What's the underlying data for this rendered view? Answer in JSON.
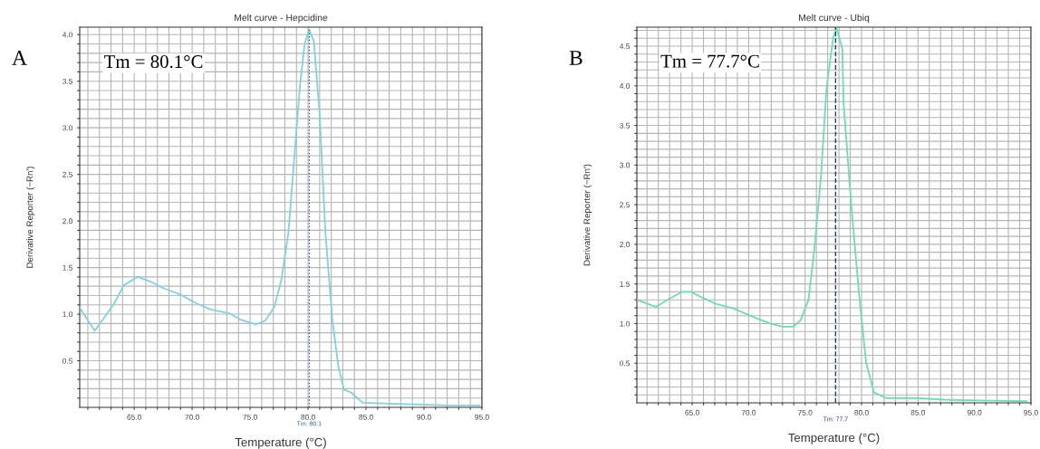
{
  "chart_data": [
    {
      "type": "line",
      "title": "Melt curve - Hepcidine",
      "xlabel": "Temperature (°C)",
      "ylabel": "Derivative Reporter (−Rn′)",
      "annotations": [
        "A",
        "Tm = 80.1°C"
      ],
      "x": [
        60.3,
        61.6,
        63.3,
        64.1,
        65.3,
        66.4,
        67.5,
        69.0,
        70.3,
        71.6,
        73.2,
        74.2,
        75.5,
        76.3,
        77.1,
        77.7,
        78.3,
        78.8,
        79.3,
        79.7,
        80.1,
        80.5,
        81.0,
        81.5,
        82.1,
        82.6,
        83.1,
        83.7,
        84.7,
        87.0,
        89.6,
        92.2,
        94.8
      ],
      "series": [
        {
          "color": "#7fd3dc",
          "values": [
            1.07,
            0.82,
            1.12,
            1.31,
            1.4,
            1.35,
            1.28,
            1.21,
            1.12,
            1.05,
            1.01,
            0.94,
            0.89,
            0.93,
            1.08,
            1.37,
            1.87,
            2.66,
            3.45,
            3.9,
            4.05,
            3.93,
            3.14,
            1.87,
            0.93,
            0.45,
            0.19,
            0.16,
            0.05,
            0.04,
            0.03,
            0.02,
            0.02
          ]
        }
      ],
      "xlim": [
        60.3,
        95
      ],
      "ylim": [
        0,
        4.08
      ],
      "xticks": [
        {
          "value": 61,
          "label": null
        },
        {
          "value": 62,
          "label": null
        },
        {
          "value": 63,
          "label": null
        },
        {
          "value": 64,
          "label": null
        },
        {
          "value": 65,
          "label": "65.0"
        },
        {
          "value": 66,
          "label": null
        },
        {
          "value": 67,
          "label": null
        },
        {
          "value": 68,
          "label": null
        },
        {
          "value": 69,
          "label": null
        },
        {
          "value": 70,
          "label": "70.0"
        },
        {
          "value": 71,
          "label": null
        },
        {
          "value": 72,
          "label": null
        },
        {
          "value": 73,
          "label": null
        },
        {
          "value": 74,
          "label": null
        },
        {
          "value": 75,
          "label": "75.0"
        },
        {
          "value": 76,
          "label": null
        },
        {
          "value": 77,
          "label": null
        },
        {
          "value": 78,
          "label": null
        },
        {
          "value": 79,
          "label": null
        },
        {
          "value": 80,
          "label": "80.0"
        },
        {
          "value": 81,
          "label": null
        },
        {
          "value": 82,
          "label": null
        },
        {
          "value": 83,
          "label": null
        },
        {
          "value": 84,
          "label": null
        },
        {
          "value": 85,
          "label": "85.0"
        },
        {
          "value": 86,
          "label": null
        },
        {
          "value": 87,
          "label": null
        },
        {
          "value": 88,
          "label": null
        },
        {
          "value": 89,
          "label": null
        },
        {
          "value": 90,
          "label": "90.0"
        },
        {
          "value": 91,
          "label": null
        },
        {
          "value": 92,
          "label": null
        },
        {
          "value": 93,
          "label": null
        },
        {
          "value": 94,
          "label": null
        },
        {
          "value": 95,
          "label": "95.0"
        }
      ],
      "yticks": [
        {
          "value": 0.1,
          "label": null
        },
        {
          "value": 0.2,
          "label": null
        },
        {
          "value": 0.3,
          "label": null
        },
        {
          "value": 0.4,
          "label": null
        },
        {
          "value": 0.5,
          "label": "0.5"
        },
        {
          "value": 0.6,
          "label": null
        },
        {
          "value": 0.7,
          "label": null
        },
        {
          "value": 0.8,
          "label": null
        },
        {
          "value": 0.9,
          "label": null
        },
        {
          "value": 1.0,
          "label": "1.0"
        },
        {
          "value": 1.1,
          "label": null
        },
        {
          "value": 1.2,
          "label": null
        },
        {
          "value": 1.3,
          "label": null
        },
        {
          "value": 1.4,
          "label": null
        },
        {
          "value": 1.5,
          "label": "1.5"
        },
        {
          "value": 1.6,
          "label": null
        },
        {
          "value": 1.7,
          "label": null
        },
        {
          "value": 1.8,
          "label": null
        },
        {
          "value": 1.9,
          "label": null
        },
        {
          "value": 2.0,
          "label": "2.0"
        },
        {
          "value": 2.1,
          "label": null
        },
        {
          "value": 2.2,
          "label": null
        },
        {
          "value": 2.3,
          "label": null
        },
        {
          "value": 2.4,
          "label": null
        },
        {
          "value": 2.5,
          "label": "2.5"
        },
        {
          "value": 2.6,
          "label": null
        },
        {
          "value": 2.7,
          "label": null
        },
        {
          "value": 2.8,
          "label": null
        },
        {
          "value": 2.9,
          "label": null
        },
        {
          "value": 3.0,
          "label": "3.0"
        },
        {
          "value": 3.1,
          "label": null
        },
        {
          "value": 3.2,
          "label": null
        },
        {
          "value": 3.3,
          "label": null
        },
        {
          "value": 3.4,
          "label": null
        },
        {
          "value": 3.5,
          "label": "3.5"
        },
        {
          "value": 3.6,
          "label": null
        },
        {
          "value": 3.7,
          "label": null
        },
        {
          "value": 3.8,
          "label": null
        },
        {
          "value": 3.9,
          "label": null
        },
        {
          "value": 4.0,
          "label": "4.0"
        }
      ],
      "ref_lines": [
        {
          "axis": "x",
          "value": 80.1,
          "label": "Tm: 80.1",
          "color": "#2a5fa8",
          "line_style": "dotted"
        }
      ],
      "grid": true
    },
    {
      "type": "line",
      "title": "Melt curve - Ubiq",
      "xlabel": "Temperature (°C)",
      "ylabel": "Derivative Reporter (−Rn′)",
      "annotations": [
        "B",
        "Tm = 77.7°C"
      ],
      "x": [
        60.1,
        61.8,
        62.8,
        64.1,
        64.9,
        66.0,
        67.1,
        68.7,
        70.3,
        71.9,
        73.0,
        73.9,
        74.6,
        75.3,
        75.8,
        76.4,
        76.9,
        77.5,
        77.8,
        78.3,
        78.4,
        79.1,
        79.8,
        80.4,
        81.1,
        82.2,
        84.9,
        87.3,
        90.3,
        94.6
      ],
      "series": [
        {
          "color": "#6fdcb4",
          "values": [
            1.3,
            1.21,
            1.3,
            1.4,
            1.4,
            1.32,
            1.25,
            1.19,
            1.09,
            1.0,
            0.96,
            0.96,
            1.04,
            1.3,
            1.91,
            2.85,
            3.98,
            4.62,
            4.72,
            4.47,
            3.79,
            2.47,
            1.34,
            0.51,
            0.13,
            0.06,
            0.06,
            0.04,
            0.03,
            0.02
          ]
        }
      ],
      "xlim": [
        60.1,
        95
      ],
      "ylim": [
        0,
        4.74
      ],
      "xticks": [
        {
          "value": 61,
          "label": null
        },
        {
          "value": 62,
          "label": null
        },
        {
          "value": 63,
          "label": null
        },
        {
          "value": 64,
          "label": null
        },
        {
          "value": 65,
          "label": "65.0"
        },
        {
          "value": 66,
          "label": null
        },
        {
          "value": 67,
          "label": null
        },
        {
          "value": 68,
          "label": null
        },
        {
          "value": 69,
          "label": null
        },
        {
          "value": 70,
          "label": "70.0"
        },
        {
          "value": 71,
          "label": null
        },
        {
          "value": 72,
          "label": null
        },
        {
          "value": 73,
          "label": null
        },
        {
          "value": 74,
          "label": null
        },
        {
          "value": 75,
          "label": "75.0"
        },
        {
          "value": 76,
          "label": null
        },
        {
          "value": 77,
          "label": null
        },
        {
          "value": 78,
          "label": null
        },
        {
          "value": 79,
          "label": null
        },
        {
          "value": 80,
          "label": "80.0"
        },
        {
          "value": 81,
          "label": null
        },
        {
          "value": 82,
          "label": null
        },
        {
          "value": 83,
          "label": null
        },
        {
          "value": 84,
          "label": null
        },
        {
          "value": 85,
          "label": "85.0"
        },
        {
          "value": 86,
          "label": null
        },
        {
          "value": 87,
          "label": null
        },
        {
          "value": 88,
          "label": null
        },
        {
          "value": 89,
          "label": null
        },
        {
          "value": 90,
          "label": "90.0"
        },
        {
          "value": 91,
          "label": null
        },
        {
          "value": 92,
          "label": null
        },
        {
          "value": 93,
          "label": null
        },
        {
          "value": 94,
          "label": null
        },
        {
          "value": 95,
          "label": "95.0"
        }
      ],
      "yticks": [
        {
          "value": 0.1,
          "label": null
        },
        {
          "value": 0.2,
          "label": null
        },
        {
          "value": 0.3,
          "label": null
        },
        {
          "value": 0.4,
          "label": null
        },
        {
          "value": 0.5,
          "label": "0.5"
        },
        {
          "value": 0.6,
          "label": null
        },
        {
          "value": 0.7,
          "label": null
        },
        {
          "value": 0.8,
          "label": null
        },
        {
          "value": 0.9,
          "label": null
        },
        {
          "value": 1.0,
          "label": "1.0"
        },
        {
          "value": 1.1,
          "label": null
        },
        {
          "value": 1.2,
          "label": null
        },
        {
          "value": 1.3,
          "label": null
        },
        {
          "value": 1.4,
          "label": null
        },
        {
          "value": 1.5,
          "label": "1.5"
        },
        {
          "value": 1.6,
          "label": null
        },
        {
          "value": 1.7,
          "label": null
        },
        {
          "value": 1.8,
          "label": null
        },
        {
          "value": 1.9,
          "label": null
        },
        {
          "value": 2.0,
          "label": "2.0"
        },
        {
          "value": 2.1,
          "label": null
        },
        {
          "value": 2.2,
          "label": null
        },
        {
          "value": 2.3,
          "label": null
        },
        {
          "value": 2.4,
          "label": null
        },
        {
          "value": 2.5,
          "label": "2.5"
        },
        {
          "value": 2.6,
          "label": null
        },
        {
          "value": 2.7,
          "label": null
        },
        {
          "value": 2.8,
          "label": null
        },
        {
          "value": 2.9,
          "label": null
        },
        {
          "value": 3.0,
          "label": "3.0"
        },
        {
          "value": 3.1,
          "label": null
        },
        {
          "value": 3.2,
          "label": null
        },
        {
          "value": 3.3,
          "label": null
        },
        {
          "value": 3.4,
          "label": null
        },
        {
          "value": 3.5,
          "label": "3.5"
        },
        {
          "value": 3.6,
          "label": null
        },
        {
          "value": 3.7,
          "label": null
        },
        {
          "value": 3.8,
          "label": null
        },
        {
          "value": 3.9,
          "label": null
        },
        {
          "value": 4.0,
          "label": "4.0"
        },
        {
          "value": 4.1,
          "label": null
        },
        {
          "value": 4.2,
          "label": null
        },
        {
          "value": 4.3,
          "label": null
        },
        {
          "value": 4.4,
          "label": null
        },
        {
          "value": 4.5,
          "label": "4.5"
        },
        {
          "value": 4.6,
          "label": null
        },
        {
          "value": 4.7,
          "label": null
        }
      ],
      "ref_lines": [
        {
          "axis": "x",
          "value": 77.7,
          "label": "Tm: 77.7",
          "color": "#1f3f7a",
          "line_style": "dashed"
        }
      ],
      "grid": true
    }
  ]
}
